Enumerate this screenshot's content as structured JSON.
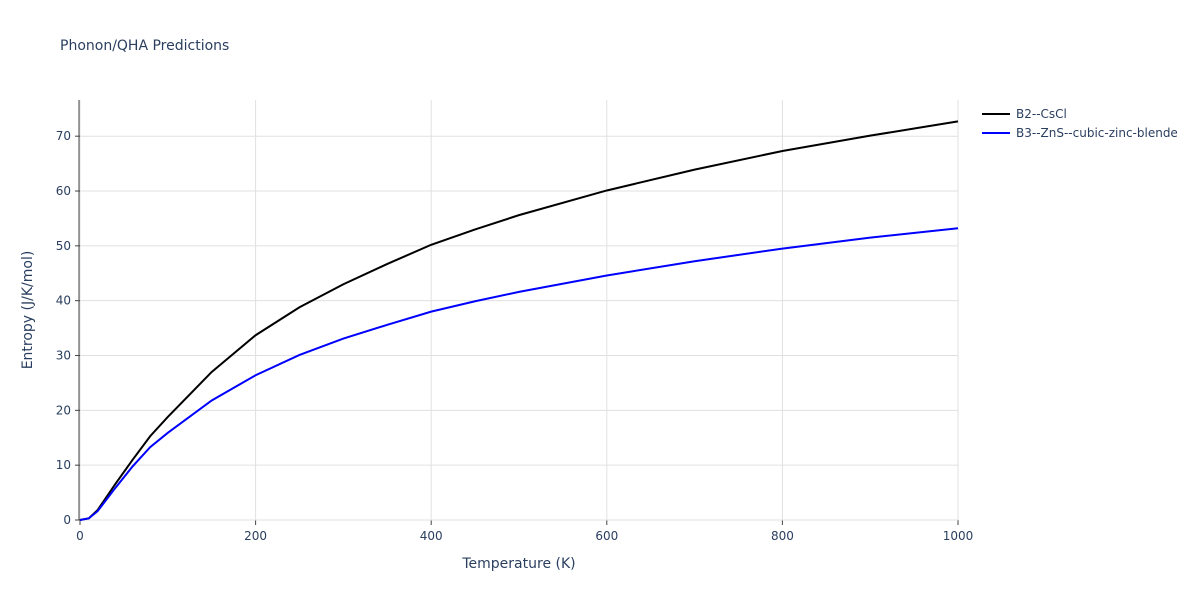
{
  "chart_data": {
    "type": "line",
    "title": "Phonon/QHA Predictions",
    "x_label": "Temperature (K)",
    "y_label": "Entropy (J/K/mol)",
    "x": [
      0,
      10,
      20,
      40,
      60,
      80,
      100,
      150,
      200,
      250,
      300,
      350,
      400,
      450,
      500,
      600,
      700,
      800,
      900,
      1000
    ],
    "series": [
      {
        "name": "B2--CsCl",
        "color": "#000000",
        "values": [
          0,
          0.3,
          1.8,
          6.5,
          11,
          15.3,
          18.8,
          27.0,
          33.7,
          38.8,
          43.0,
          46.7,
          50.2,
          53.0,
          55.6,
          60.1,
          63.9,
          67.3,
          70.1,
          72.7
        ]
      },
      {
        "name": "B3--ZnS--cubic-zinc-blende",
        "color": "#0000ff",
        "values": [
          0,
          0.3,
          1.6,
          5.8,
          9.8,
          13.3,
          15.9,
          21.8,
          26.4,
          30.1,
          33.1,
          35.6,
          38.0,
          39.9,
          41.6,
          44.6,
          47.2,
          49.5,
          51.5,
          53.2
        ]
      }
    ],
    "xlim": [
      0,
      1000
    ],
    "xticks": [
      0,
      200,
      400,
      600,
      800,
      1000
    ],
    "ylim": [
      0,
      76.6
    ],
    "yticks": [
      0,
      10,
      20,
      30,
      40,
      50,
      60,
      70
    ],
    "grid": true,
    "legend": "outside-right"
  }
}
